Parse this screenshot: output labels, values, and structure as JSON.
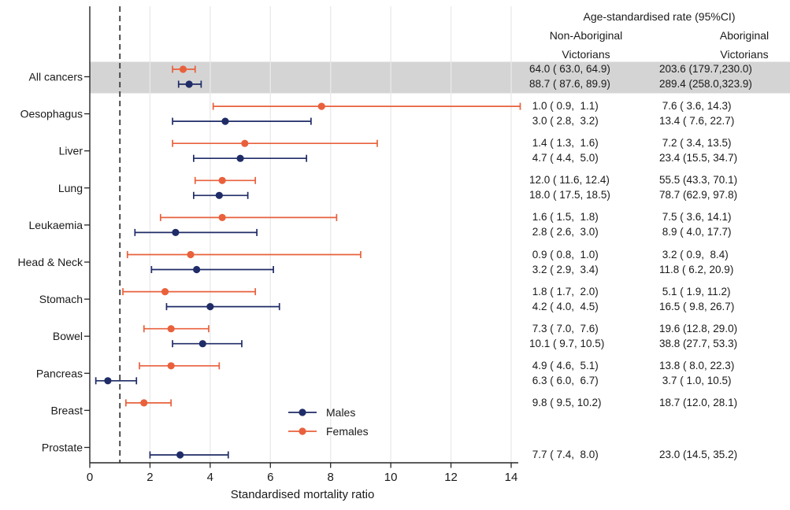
{
  "header": {
    "title": "Age-standardised rate (95%CI)",
    "col1_line1": "Non-Aboriginal",
    "col1_line2": "Victorians",
    "col2_line1": "Aboriginal",
    "col2_line2": "Victorians"
  },
  "legend": {
    "males": "Males",
    "females": "Females"
  },
  "colors": {
    "males": "#1F2C67",
    "females": "#E8613C",
    "highlight_band": "#D4D4D4",
    "grid": "#E9E9E9",
    "axis": "#262626",
    "reference_line": "#3C3C3C",
    "text": "#1A1A1A"
  },
  "chart_data": {
    "type": "scatter",
    "variant": "forest-plot",
    "xlabel": "Standardised mortality ratio",
    "xlim": [
      0,
      14.25
    ],
    "x_ticks": [
      0,
      2,
      4,
      6,
      8,
      10,
      12,
      14
    ],
    "reference_line_x": 1,
    "grid": true,
    "series_names": [
      "Males",
      "Females"
    ],
    "note": "SMR points and 95% CIs estimated from plot pixels; rate columns are the printed Age-standardised rate (95%CI) text",
    "rows": [
      {
        "category": "All cancers",
        "highlight": true,
        "females": {
          "smr": 3.1,
          "ci_low": 2.75,
          "ci_high": 3.5,
          "rate_non_aboriginal": "64.0 ( 63.0, 64.9)",
          "rate_aboriginal": "203.6 (179.7,230.0)"
        },
        "males": {
          "smr": 3.3,
          "ci_low": 2.95,
          "ci_high": 3.7,
          "rate_non_aboriginal": "88.7 ( 87.6, 89.9)",
          "rate_aboriginal": "289.4 (258.0,323.9)"
        }
      },
      {
        "category": "Oesophagus",
        "highlight": false,
        "females": {
          "smr": 7.7,
          "ci_low": 4.1,
          "ci_high": 14.3,
          "rate_non_aboriginal": " 1.0 ( 0.9,  1.1)",
          "rate_aboriginal": " 7.6 ( 3.6, 14.3)"
        },
        "males": {
          "smr": 4.5,
          "ci_low": 2.75,
          "ci_high": 7.35,
          "rate_non_aboriginal": " 3.0 ( 2.8,  3.2)",
          "rate_aboriginal": "13.4 ( 7.6, 22.7)"
        }
      },
      {
        "category": "Liver",
        "highlight": false,
        "females": {
          "smr": 5.15,
          "ci_low": 2.75,
          "ci_high": 9.55,
          "rate_non_aboriginal": " 1.4 ( 1.3,  1.6)",
          "rate_aboriginal": " 7.2 ( 3.4, 13.5)"
        },
        "males": {
          "smr": 5.0,
          "ci_low": 3.45,
          "ci_high": 7.2,
          "rate_non_aboriginal": " 4.7 ( 4.4,  5.0)",
          "rate_aboriginal": "23.4 (15.5, 34.7)"
        }
      },
      {
        "category": "Lung",
        "highlight": false,
        "females": {
          "smr": 4.4,
          "ci_low": 3.5,
          "ci_high": 5.5,
          "rate_non_aboriginal": "12.0 ( 11.6, 12.4)",
          "rate_aboriginal": "55.5 (43.3, 70.1)"
        },
        "males": {
          "smr": 4.3,
          "ci_low": 3.45,
          "ci_high": 5.25,
          "rate_non_aboriginal": "18.0 ( 17.5, 18.5)",
          "rate_aboriginal": "78.7 (62.9, 97.8)"
        }
      },
      {
        "category": "Leukaemia",
        "highlight": false,
        "females": {
          "smr": 4.4,
          "ci_low": 2.35,
          "ci_high": 8.2,
          "rate_non_aboriginal": " 1.6 ( 1.5,  1.8)",
          "rate_aboriginal": " 7.5 ( 3.6, 14.1)"
        },
        "males": {
          "smr": 2.85,
          "ci_low": 1.5,
          "ci_high": 5.55,
          "rate_non_aboriginal": " 2.8 ( 2.6,  3.0)",
          "rate_aboriginal": " 8.9 ( 4.0, 17.7)"
        }
      },
      {
        "category": "Head & Neck",
        "highlight": false,
        "females": {
          "smr": 3.35,
          "ci_low": 1.25,
          "ci_high": 9.0,
          "rate_non_aboriginal": " 0.9 ( 0.8,  1.0)",
          "rate_aboriginal": " 3.2 ( 0.9,  8.4)"
        },
        "males": {
          "smr": 3.55,
          "ci_low": 2.05,
          "ci_high": 6.1,
          "rate_non_aboriginal": " 3.2 ( 2.9,  3.4)",
          "rate_aboriginal": "11.8 ( 6.2, 20.9)"
        }
      },
      {
        "category": "Stomach",
        "highlight": false,
        "females": {
          "smr": 2.5,
          "ci_low": 1.1,
          "ci_high": 5.5,
          "rate_non_aboriginal": " 1.8 ( 1.7,  2.0)",
          "rate_aboriginal": " 5.1 ( 1.9, 11.2)"
        },
        "males": {
          "smr": 4.0,
          "ci_low": 2.55,
          "ci_high": 6.3,
          "rate_non_aboriginal": " 4.2 ( 4.0,  4.5)",
          "rate_aboriginal": "16.5 ( 9.8, 26.7)"
        }
      },
      {
        "category": "Bowel",
        "highlight": false,
        "females": {
          "smr": 2.7,
          "ci_low": 1.8,
          "ci_high": 3.95,
          "rate_non_aboriginal": " 7.3 ( 7.0,  7.6)",
          "rate_aboriginal": "19.6 (12.8, 29.0)"
        },
        "males": {
          "smr": 3.75,
          "ci_low": 2.75,
          "ci_high": 5.05,
          "rate_non_aboriginal": "10.1 ( 9.7, 10.5)",
          "rate_aboriginal": "38.8 (27.7, 53.3)"
        }
      },
      {
        "category": "Pancreas",
        "highlight": false,
        "females": {
          "smr": 2.7,
          "ci_low": 1.65,
          "ci_high": 4.3,
          "rate_non_aboriginal": " 4.9 ( 4.6,  5.1)",
          "rate_aboriginal": "13.8 ( 8.0, 22.3)"
        },
        "males": {
          "smr": 0.6,
          "ci_low": 0.2,
          "ci_high": 1.55,
          "rate_non_aboriginal": " 6.3 ( 6.0,  6.7)",
          "rate_aboriginal": " 3.7 ( 1.0, 10.5)"
        }
      },
      {
        "category": "Breast",
        "highlight": false,
        "females": {
          "smr": 1.8,
          "ci_low": 1.2,
          "ci_high": 2.7,
          "rate_non_aboriginal": " 9.8 ( 9.5, 10.2)",
          "rate_aboriginal": "18.7 (12.0, 28.1)"
        },
        "males": null
      },
      {
        "category": "Prostate",
        "highlight": false,
        "females": null,
        "males": {
          "smr": 3.0,
          "ci_low": 2.0,
          "ci_high": 4.6,
          "rate_non_aboriginal": " 7.7 ( 7.4,  8.0)",
          "rate_aboriginal": "23.0 (14.5, 35.2)"
        }
      }
    ]
  }
}
